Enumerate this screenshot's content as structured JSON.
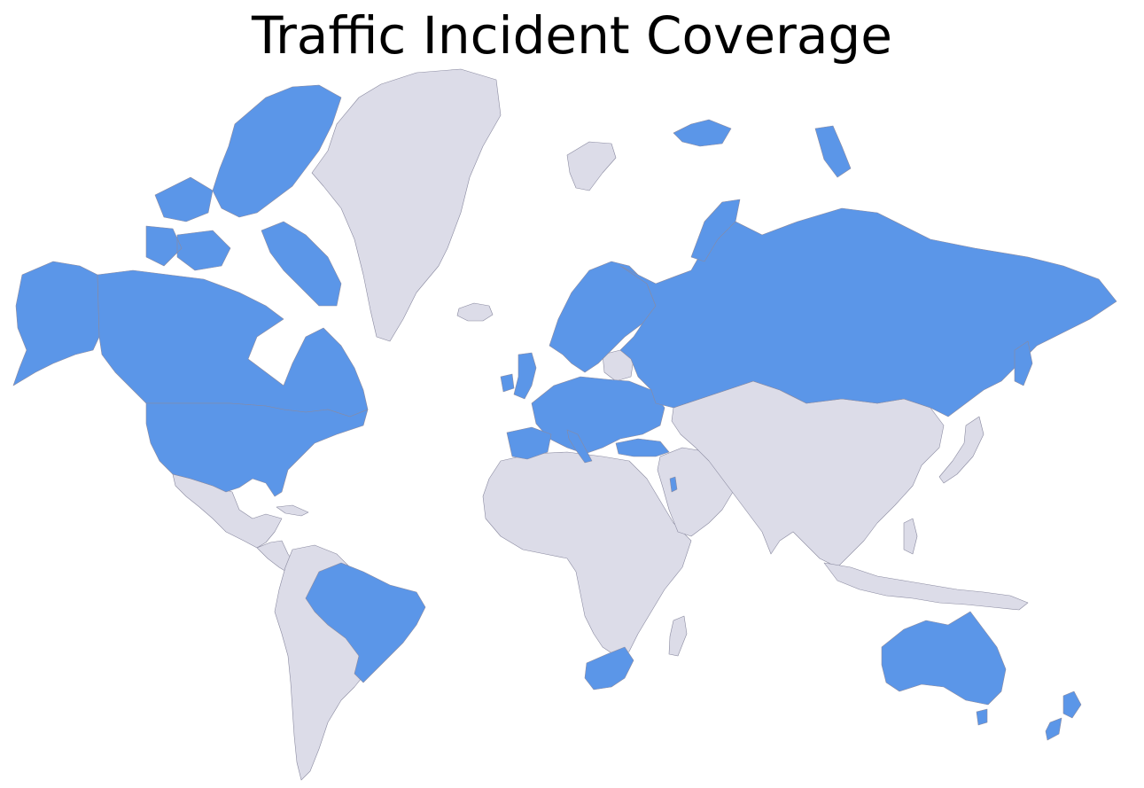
{
  "title": "Traffic Incident Coverage",
  "colors": {
    "covered": "#5b96e8",
    "not_covered": "#dcdce8",
    "border": "#8a8aa0",
    "background": "#ffffff"
  },
  "covered_countries": [
    "United States",
    "Canada",
    "Brazil",
    "United Kingdom",
    "Ireland",
    "France",
    "Spain",
    "Portugal",
    "Germany",
    "Italy",
    "Norway",
    "Sweden",
    "Finland",
    "Denmark",
    "Poland",
    "Ukraine",
    "Turkey",
    "Greece",
    "Russia",
    "Israel",
    "South Africa",
    "Australia",
    "New Zealand"
  ]
}
